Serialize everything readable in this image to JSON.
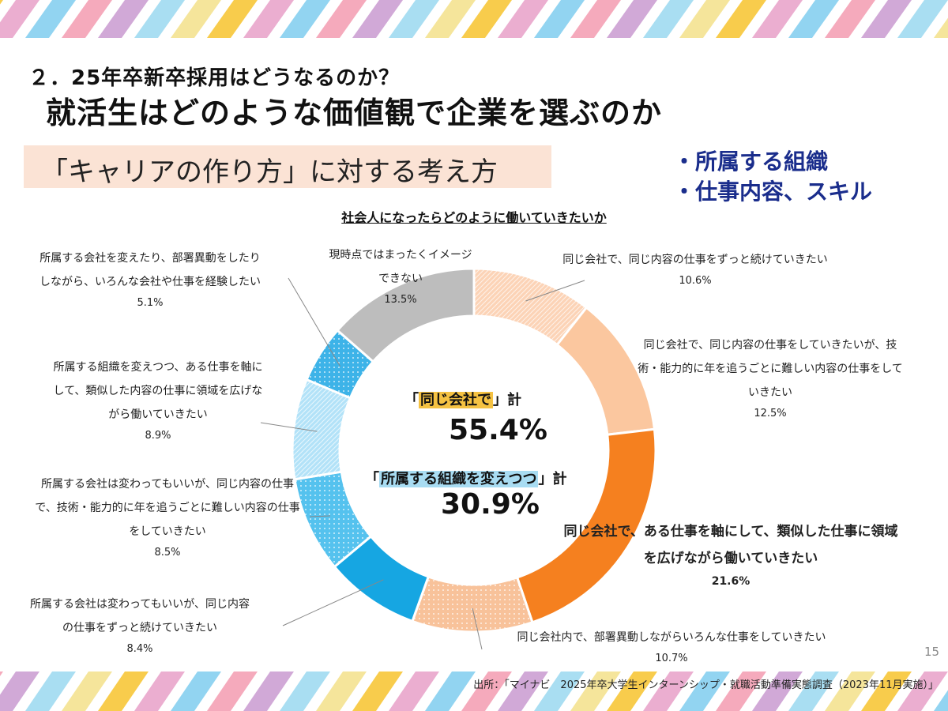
{
  "header": {
    "section": "２．25年卒新卒採用はどうなるのか？",
    "title": "就活生はどのような価値観で企業を選ぶのか",
    "topic": "「キャリアの作り方」に対する考え方",
    "bullets": [
      "・所属する組織",
      "・仕事内容、スキル"
    ]
  },
  "chart_data": {
    "type": "pie",
    "style": "donut",
    "title": "社会人になったらどのように働いていきたいか",
    "unit": "%",
    "slices": [
      {
        "label": "同じ会社で、同じ内容の仕事をずっと続けていきたい",
        "value": 10.6,
        "value_text": "10.6%",
        "color": "#fcd3b6",
        "pattern": "hatch"
      },
      {
        "label": "同じ会社で、同じ内容の仕事をしていきたいが、技術・能力的に年を追うごとに難しい内容の仕事をしていきたい",
        "value": 12.5,
        "value_text": "12.5%",
        "color": "#fbc79f",
        "pattern": "none"
      },
      {
        "label": "同じ会社で、ある仕事を軸にして、類似した仕事に領域を広げながら働いていきたい",
        "value": 21.6,
        "value_text": "21.6%",
        "color": "#f5801f",
        "pattern": "none"
      },
      {
        "label": "同じ会社内で、部署異動しながらいろんな仕事をしていきたい",
        "value": 10.7,
        "value_text": "10.7%",
        "color": "#f8c29a",
        "pattern": "dots"
      },
      {
        "label": "所属する会社は変わってもいいが、同じ内容の仕事をずっと続けていきたい",
        "value": 8.4,
        "value_text": "8.4%",
        "color": "#16a6e2",
        "pattern": "none"
      },
      {
        "label": "所属する会社は変わってもいいが、同じ内容の仕事で、技術・能力的に年を追うごとに難しい内容の仕事をしていきたい",
        "value": 8.5,
        "value_text": "8.5%",
        "color": "#55c2ee",
        "pattern": "dots"
      },
      {
        "label": "所属する組織を変えつつ、ある仕事を軸にして、類似した内容の仕事に領域を広げながら働いていきたい",
        "value": 8.9,
        "value_text": "8.9%",
        "color": "#b2e2f8",
        "pattern": "hatch"
      },
      {
        "label": "所属する会社を変えたり、部署異動をしたりしながら、いろんな会社や仕事を経験したい",
        "value": 5.1,
        "value_text": "5.1%",
        "color": "#3db3e8",
        "pattern": "dots"
      },
      {
        "label": "現時点ではまったくイメージできない",
        "value": 13.5,
        "value_text": "13.5%",
        "color": "#bdbdbd",
        "pattern": "none"
      }
    ],
    "summary": [
      {
        "label": "「同じ会社で」計",
        "value": 55.4,
        "value_text": "55.4%",
        "highlight_color": "#f5c242"
      },
      {
        "label": "「所属する組織を変えつつ」計",
        "value": 30.9,
        "value_text": "30.9%",
        "highlight_color": "#a8dcf2"
      }
    ]
  },
  "labels": {
    "s0": [
      "同じ会社で、同じ内容の仕事をずっと続けていきたい"
    ],
    "s1": [
      "同じ会社で、同じ内容の仕事をしていきたいが、技",
      "術・能力的に年を追うごとに難しい内容の仕事をして",
      "いきたい"
    ],
    "s2": [
      "同じ会社で、ある仕事を軸にして、類似した仕事に領域",
      "を広げながら働いていきたい"
    ],
    "s3": [
      "同じ会社内で、部署異動しながらいろんな仕事をしていきたい"
    ],
    "s4": [
      "所属する会社は変わってもいいが、同じ内容",
      "の仕事をずっと続けていきたい"
    ],
    "s5": [
      "所属する会社は変わってもいいが、同じ内容の仕事",
      "で、技術・能力的に年を追うごとに難しい内容の仕事",
      "をしていきたい"
    ],
    "s6": [
      "所属する組織を変えつつ、ある仕事を軸に",
      "して、類似した内容の仕事に領域を広げな",
      "がら働いていきたい"
    ],
    "s7": [
      "所属する会社を変えたり、部署異動をしたり",
      "しながら、いろんな会社や仕事を経験したい"
    ],
    "s8": [
      "現時点ではまったくイメージ",
      "できない"
    ]
  },
  "center": {
    "label1_pre": "「",
    "label1_hl": "同じ会社で",
    "label1_post": "」計",
    "label2_pre": "「",
    "label2_hl": "所属する組織を変えつつ",
    "label2_post": "」計"
  },
  "footer": {
    "page": "15",
    "source": "出所：「マイナビ　2025年卒大学生インターンシップ・就職活動準備実態調査（2023年11月実施）」"
  },
  "decor_colors": [
    "#f7c32d",
    "#e8a0c8",
    "#7fcdee",
    "#f39bb0",
    "#c99ad0",
    "#9ad8f0",
    "#f3e08a"
  ]
}
